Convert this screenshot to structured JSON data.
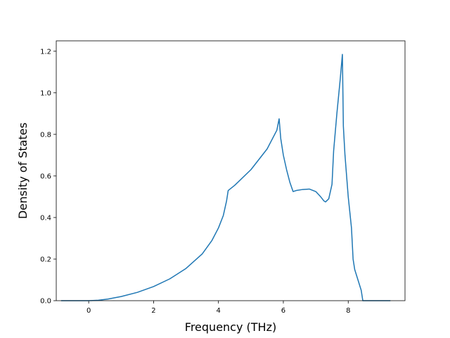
{
  "chart_data": {
    "type": "line",
    "title": "",
    "xlabel": "Frequency (THz)",
    "ylabel": "Density of States",
    "xlim": [
      -1.0,
      9.75
    ],
    "ylim": [
      0.0,
      1.25
    ],
    "xticks": [
      0,
      2,
      4,
      6,
      8
    ],
    "yticks": [
      0.0,
      0.2,
      0.4,
      0.6,
      0.8,
      1.0,
      1.2
    ],
    "xtick_labels": [
      "0",
      "2",
      "4",
      "6",
      "8"
    ],
    "ytick_labels": [
      "0.0",
      "0.2",
      "0.4",
      "0.6",
      "0.8",
      "1.0",
      "1.2"
    ],
    "grid": false,
    "legend": "none",
    "line_color": "#1f77b4",
    "series": [
      {
        "x": [
          -0.85,
          -0.5,
          0.0,
          0.3,
          0.6,
          1.0,
          1.5,
          2.0,
          2.5,
          3.0,
          3.5,
          3.8,
          4.0,
          4.15,
          4.25,
          4.3,
          4.5,
          5.0,
          5.5,
          5.8,
          5.87,
          5.92,
          6.0,
          6.1,
          6.2,
          6.3,
          6.4,
          6.6,
          6.8,
          7.0,
          7.15,
          7.25,
          7.3,
          7.4,
          7.5,
          7.55,
          7.65,
          7.75,
          7.82,
          7.85,
          7.9,
          8.0,
          8.1,
          8.15,
          8.2,
          8.3,
          8.4,
          8.45,
          8.6,
          9.0,
          9.3
        ],
        "y": [
          0.0,
          0.0,
          0.0,
          0.002,
          0.008,
          0.02,
          0.04,
          0.068,
          0.105,
          0.155,
          0.225,
          0.29,
          0.35,
          0.41,
          0.48,
          0.53,
          0.555,
          0.63,
          0.73,
          0.82,
          0.875,
          0.78,
          0.7,
          0.63,
          0.57,
          0.525,
          0.53,
          0.535,
          0.537,
          0.525,
          0.5,
          0.48,
          0.475,
          0.49,
          0.56,
          0.72,
          0.9,
          1.06,
          1.185,
          0.84,
          0.7,
          0.5,
          0.35,
          0.2,
          0.15,
          0.1,
          0.05,
          0.0,
          0.0,
          0.0,
          0.0
        ]
      }
    ]
  }
}
